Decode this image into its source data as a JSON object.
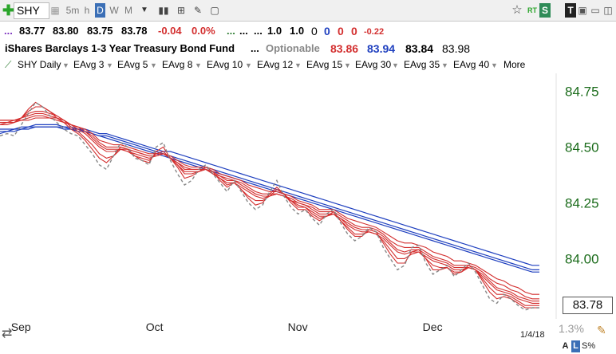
{
  "toolbar": {
    "symbol": "SHY",
    "intervals": [
      "5m",
      "h",
      "D",
      "W",
      "M"
    ],
    "active_interval": "D",
    "plus_icon": "plus-icon",
    "chart_icon": "bar-chart-icon",
    "compare_icon": "compare-icon",
    "draw_icon": "pencil-icon",
    "note_icon": "note-icon",
    "star_icon": "star-icon",
    "rt_label": "RT",
    "s_label": "S",
    "t_label": "T"
  },
  "quote": {
    "dots": "...",
    "open": "83.77",
    "high": "83.80",
    "low": "83.75",
    "close": "83.78",
    "change": "-0.04",
    "change_pct": "0.0%",
    "dots2": "...",
    "dots3": "...",
    "dots4": "...",
    "v1": "1.0",
    "v2": "1.0",
    "v3": "0",
    "v4": "0",
    "v5": "0",
    "v6": "0",
    "v7": "-0.22"
  },
  "fund": {
    "name": "iShares Barclays 1-3 Year Treasury Bond Fund",
    "dots": "...",
    "optionable": "Optionable",
    "bid": "83.86",
    "ask": "83.94",
    "last": "83.84",
    "prev": "83.98"
  },
  "indicators": [
    {
      "label": "SHY Daily",
      "color": "#2e7d32"
    },
    {
      "label": "EAvg 3",
      "color": "#d32f2f"
    },
    {
      "label": "EAvg 5",
      "color": "#d32f2f"
    },
    {
      "label": "EAvg 8",
      "color": "#ef8a8a"
    },
    {
      "label": "EAvg 10",
      "color": "#d32f2f"
    },
    {
      "label": "EAvg 12",
      "color": "#d32f2f"
    },
    {
      "label": "EAvg 15",
      "color": "#d32f2f"
    },
    {
      "label": "EAvg 30",
      "color": "#1e3fbf"
    },
    {
      "label": "EAvg 35",
      "color": "#1e3fbf"
    },
    {
      "label": "EAvg 40",
      "color": "#1e3fbf"
    },
    {
      "label": "More",
      "color": "#888888"
    }
  ],
  "footer": {
    "last_price": "83.78",
    "date": "1/4/18",
    "pct": "1.3%",
    "a_label": "A",
    "l_label": "L",
    "spct_label": "S%"
  },
  "chart_data": {
    "type": "line",
    "x_months": [
      "Sep",
      "Oct",
      "Nov",
      "Dec"
    ],
    "y_ticks": [
      "84.75",
      "84.50",
      "84.25",
      "84.00"
    ],
    "ylim": [
      83.73,
      84.83
    ],
    "colors": {
      "short": "#d32f2f",
      "long": "#1e3fbf",
      "price": "#888888"
    },
    "price": [
      84.55,
      84.56,
      84.55,
      84.6,
      84.65,
      84.7,
      84.68,
      84.64,
      84.61,
      84.58,
      84.56,
      84.55,
      84.51,
      84.47,
      84.42,
      84.4,
      84.46,
      84.52,
      84.5,
      84.45,
      84.44,
      84.42,
      84.5,
      84.52,
      84.44,
      84.38,
      84.33,
      84.35,
      84.4,
      84.42,
      84.38,
      84.34,
      84.3,
      84.35,
      84.3,
      84.25,
      84.22,
      84.24,
      84.3,
      84.35,
      84.28,
      84.23,
      84.2,
      84.22,
      84.18,
      84.15,
      84.2,
      84.22,
      84.16,
      84.11,
      84.08,
      84.1,
      84.14,
      84.12,
      84.05,
      84.0,
      83.95,
      83.97,
      84.05,
      84.06,
      83.98,
      83.93,
      83.95,
      83.97,
      83.92,
      83.95,
      83.98,
      83.94,
      83.88,
      83.82,
      83.8,
      83.84,
      83.82,
      83.79,
      83.77,
      83.78,
      83.78
    ],
    "short_emas": [
      {
        "name": "EAvg 3",
        "values": [
          84.6,
          84.6,
          84.61,
          84.63,
          84.67,
          84.7,
          84.68,
          84.66,
          84.63,
          84.61,
          84.58,
          84.56,
          84.53,
          84.49,
          84.45,
          84.43,
          84.46,
          84.5,
          84.49,
          84.46,
          84.44,
          84.43,
          84.48,
          84.5,
          84.45,
          84.41,
          84.36,
          84.37,
          84.39,
          84.41,
          84.39,
          84.35,
          84.32,
          84.34,
          84.31,
          84.27,
          84.24,
          84.25,
          84.29,
          84.32,
          84.29,
          84.25,
          84.22,
          84.22,
          84.19,
          84.17,
          84.19,
          84.21,
          84.17,
          84.13,
          84.1,
          84.1,
          84.13,
          84.12,
          84.07,
          84.02,
          83.98,
          83.98,
          84.03,
          84.04,
          84.0,
          83.95,
          83.95,
          83.96,
          83.93,
          83.94,
          83.97,
          83.95,
          83.9,
          83.85,
          83.82,
          83.83,
          83.82,
          83.8,
          83.78,
          83.78,
          83.78
        ]
      },
      {
        "name": "EAvg 5",
        "values": [
          84.61,
          84.61,
          84.61,
          84.63,
          84.66,
          84.68,
          84.68,
          84.66,
          84.64,
          84.62,
          84.59,
          84.57,
          84.54,
          84.51,
          84.47,
          84.45,
          84.46,
          84.49,
          84.48,
          84.46,
          84.45,
          84.44,
          84.47,
          84.48,
          84.45,
          84.42,
          84.38,
          84.38,
          84.39,
          84.4,
          84.38,
          84.36,
          84.33,
          84.34,
          84.31,
          84.28,
          84.26,
          84.26,
          84.28,
          84.31,
          84.29,
          84.26,
          84.23,
          84.23,
          84.2,
          84.18,
          84.19,
          84.2,
          84.17,
          84.14,
          84.11,
          84.11,
          84.12,
          84.11,
          84.08,
          84.04,
          84.0,
          84.0,
          84.02,
          84.03,
          84.0,
          83.97,
          83.96,
          83.96,
          83.94,
          83.94,
          83.96,
          83.95,
          83.91,
          83.87,
          83.84,
          83.84,
          83.83,
          83.81,
          83.79,
          83.79,
          83.79
        ]
      },
      {
        "name": "EAvg 8",
        "values": [
          84.62,
          84.62,
          84.62,
          84.63,
          84.65,
          84.66,
          84.66,
          84.65,
          84.64,
          84.62,
          84.6,
          84.58,
          84.56,
          84.53,
          84.5,
          84.48,
          84.48,
          84.49,
          84.48,
          84.47,
          84.46,
          84.45,
          84.46,
          84.47,
          84.45,
          84.42,
          84.39,
          84.39,
          84.39,
          84.4,
          84.38,
          84.36,
          84.34,
          84.34,
          84.32,
          84.3,
          84.28,
          84.27,
          84.28,
          84.29,
          84.28,
          84.26,
          84.24,
          84.23,
          84.21,
          84.19,
          84.19,
          84.2,
          84.18,
          84.15,
          84.13,
          84.12,
          84.12,
          84.11,
          84.09,
          84.06,
          84.03,
          84.02,
          84.03,
          84.03,
          84.01,
          83.99,
          83.98,
          83.97,
          83.95,
          83.95,
          83.96,
          83.95,
          83.92,
          83.89,
          83.86,
          83.85,
          83.84,
          83.82,
          83.81,
          83.8,
          83.8
        ]
      },
      {
        "name": "EAvg 10",
        "values": [
          84.62,
          84.62,
          84.62,
          84.63,
          84.64,
          84.65,
          84.65,
          84.64,
          84.63,
          84.62,
          84.6,
          84.59,
          84.57,
          84.54,
          84.51,
          84.49,
          84.49,
          84.49,
          84.49,
          84.48,
          84.47,
          84.46,
          84.46,
          84.47,
          84.45,
          84.43,
          84.4,
          84.4,
          84.4,
          84.4,
          84.38,
          84.37,
          84.35,
          84.35,
          84.33,
          84.31,
          84.29,
          84.28,
          84.28,
          84.29,
          84.28,
          84.26,
          84.25,
          84.24,
          84.22,
          84.2,
          84.2,
          84.2,
          84.18,
          84.16,
          84.14,
          84.13,
          84.13,
          84.12,
          84.1,
          84.07,
          84.04,
          84.03,
          84.04,
          84.04,
          84.02,
          84.0,
          83.99,
          83.98,
          83.96,
          83.96,
          83.96,
          83.95,
          83.93,
          83.9,
          83.87,
          83.86,
          83.85,
          83.83,
          83.82,
          83.81,
          83.81
        ]
      },
      {
        "name": "EAvg 12",
        "values": [
          84.61,
          84.61,
          84.62,
          84.62,
          84.63,
          84.64,
          84.64,
          84.63,
          84.63,
          84.61,
          84.6,
          84.59,
          84.57,
          84.55,
          84.52,
          84.5,
          84.5,
          84.5,
          84.49,
          84.48,
          84.47,
          84.46,
          84.46,
          84.47,
          84.45,
          84.43,
          84.41,
          84.4,
          84.4,
          84.4,
          84.39,
          84.37,
          84.36,
          84.35,
          84.34,
          84.32,
          84.3,
          84.29,
          84.29,
          84.29,
          84.28,
          84.27,
          84.25,
          84.24,
          84.23,
          84.21,
          84.21,
          84.21,
          84.19,
          84.17,
          84.15,
          84.14,
          84.14,
          84.13,
          84.11,
          84.08,
          84.06,
          84.05,
          84.05,
          84.05,
          84.03,
          84.01,
          84.0,
          83.99,
          83.97,
          83.97,
          83.97,
          83.96,
          83.94,
          83.91,
          83.89,
          83.88,
          83.86,
          83.85,
          83.83,
          83.82,
          83.82
        ]
      },
      {
        "name": "EAvg 15",
        "values": [
          84.6,
          84.61,
          84.61,
          84.62,
          84.62,
          84.63,
          84.63,
          84.63,
          84.62,
          84.61,
          84.6,
          84.59,
          84.58,
          84.56,
          84.53,
          84.52,
          84.51,
          84.51,
          84.5,
          84.49,
          84.48,
          84.47,
          84.47,
          84.47,
          84.46,
          84.44,
          84.42,
          84.41,
          84.41,
          84.41,
          84.4,
          84.38,
          84.37,
          84.36,
          84.35,
          84.33,
          84.32,
          84.31,
          84.3,
          84.3,
          84.29,
          84.28,
          84.26,
          84.25,
          84.24,
          84.22,
          84.22,
          84.22,
          84.2,
          84.18,
          84.17,
          84.16,
          84.15,
          84.14,
          84.12,
          84.1,
          84.08,
          84.07,
          84.07,
          84.06,
          84.05,
          84.03,
          84.02,
          84.01,
          83.99,
          83.99,
          83.98,
          83.97,
          83.95,
          83.93,
          83.91,
          83.9,
          83.88,
          83.87,
          83.85,
          83.84,
          83.84
        ]
      }
    ],
    "long_emas": [
      {
        "name": "EAvg 30",
        "values": [
          84.56,
          84.57,
          84.57,
          84.58,
          84.58,
          84.59,
          84.59,
          84.59,
          84.59,
          84.58,
          84.58,
          84.57,
          84.57,
          84.56,
          84.55,
          84.54,
          84.53,
          84.52,
          84.51,
          84.5,
          84.49,
          84.48,
          84.47,
          84.46,
          84.45,
          84.44,
          84.43,
          84.42,
          84.41,
          84.4,
          84.39,
          84.38,
          84.37,
          84.36,
          84.35,
          84.34,
          84.33,
          84.32,
          84.31,
          84.3,
          84.29,
          84.28,
          84.27,
          84.26,
          84.25,
          84.24,
          84.23,
          84.22,
          84.21,
          84.2,
          84.19,
          84.18,
          84.17,
          84.16,
          84.15,
          84.14,
          84.13,
          84.12,
          84.11,
          84.1,
          84.09,
          84.08,
          84.07,
          84.06,
          84.05,
          84.04,
          84.03,
          84.02,
          84.01,
          84.0,
          83.99,
          83.98,
          83.97,
          83.96,
          83.95,
          83.94,
          83.94
        ]
      },
      {
        "name": "EAvg 35",
        "values": [
          84.57,
          84.57,
          84.58,
          84.58,
          84.59,
          84.59,
          84.59,
          84.59,
          84.59,
          84.59,
          84.58,
          84.58,
          84.57,
          84.56,
          84.55,
          84.55,
          84.54,
          84.53,
          84.52,
          84.51,
          84.5,
          84.49,
          84.48,
          84.47,
          84.46,
          84.45,
          84.44,
          84.43,
          84.42,
          84.41,
          84.4,
          84.39,
          84.38,
          84.37,
          84.36,
          84.35,
          84.34,
          84.33,
          84.32,
          84.31,
          84.3,
          84.29,
          84.28,
          84.27,
          84.26,
          84.25,
          84.24,
          84.23,
          84.22,
          84.21,
          84.2,
          84.19,
          84.18,
          84.17,
          84.16,
          84.15,
          84.14,
          84.13,
          84.12,
          84.11,
          84.1,
          84.09,
          84.08,
          84.07,
          84.06,
          84.05,
          84.04,
          84.03,
          84.02,
          84.01,
          84.0,
          83.99,
          83.98,
          83.97,
          83.96,
          83.95,
          83.95
        ]
      },
      {
        "name": "EAvg 40",
        "values": [
          84.58,
          84.58,
          84.58,
          84.59,
          84.59,
          84.6,
          84.6,
          84.6,
          84.6,
          84.59,
          84.59,
          84.58,
          84.58,
          84.57,
          84.56,
          84.56,
          84.55,
          84.54,
          84.53,
          84.52,
          84.51,
          84.5,
          84.49,
          84.48,
          84.48,
          84.47,
          84.46,
          84.45,
          84.44,
          84.43,
          84.42,
          84.41,
          84.4,
          84.39,
          84.38,
          84.37,
          84.36,
          84.35,
          84.34,
          84.33,
          84.32,
          84.31,
          84.3,
          84.29,
          84.28,
          84.27,
          84.26,
          84.25,
          84.24,
          84.23,
          84.22,
          84.21,
          84.2,
          84.19,
          84.18,
          84.17,
          84.16,
          84.15,
          84.14,
          84.13,
          84.12,
          84.11,
          84.1,
          84.09,
          84.08,
          84.07,
          84.06,
          84.05,
          84.04,
          84.03,
          84.02,
          84.01,
          84.0,
          83.99,
          83.98,
          83.97,
          83.97
        ]
      }
    ]
  }
}
